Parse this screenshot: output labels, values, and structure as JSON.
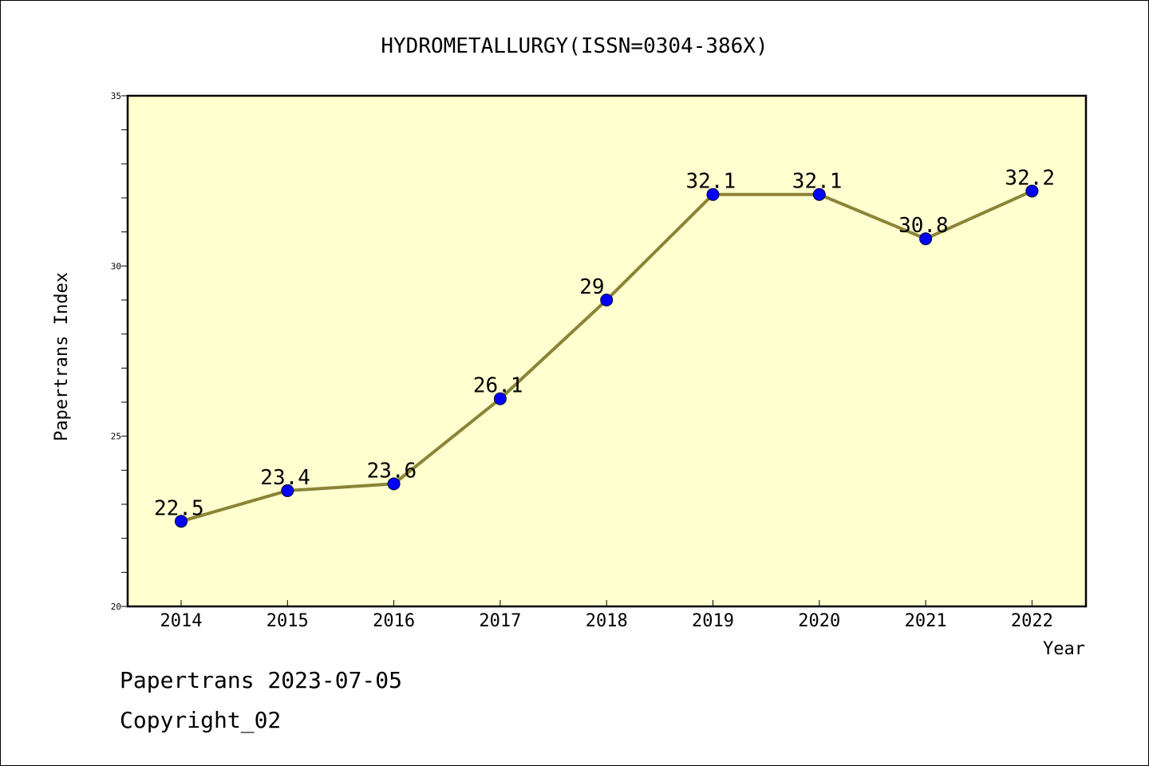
{
  "chart_data": {
    "type": "line",
    "title": "HYDROMETALLURGY(ISSN=0304-386X)",
    "xlabel": "Year",
    "ylabel": "Papertrans Index",
    "categories": [
      "2014",
      "2015",
      "2016",
      "2017",
      "2018",
      "2019",
      "2020",
      "2021",
      "2022"
    ],
    "series": [
      {
        "values": [
          22.5,
          23.4,
          23.6,
          26.1,
          29,
          32.1,
          32.1,
          30.8,
          32.2
        ],
        "labels": [
          "22.5",
          "23.4",
          "23.6",
          "26.1",
          "29",
          "32.1",
          "32.1",
          "30.8",
          "32.2"
        ]
      }
    ],
    "ylim": [
      20,
      35
    ],
    "yticks": [
      "20",
      "25",
      "30",
      "35"
    ],
    "grid": false,
    "legend": "none",
    "colors": {
      "plot_background": "#ffffd0",
      "line": "#8b8436",
      "marker": "#0000ff"
    }
  },
  "footer": {
    "line1": "Papertrans 2023-07-05",
    "line2": "Copyright_02"
  }
}
